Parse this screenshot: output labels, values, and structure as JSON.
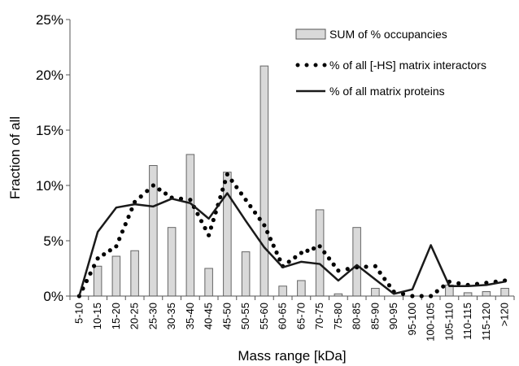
{
  "chart_data": {
    "type": "bar",
    "xlabel": "Mass range [kDa]",
    "ylabel": "Fraction of all",
    "ylim": [
      0,
      25
    ],
    "yticks": [
      "0%",
      "5%",
      "10%",
      "15%",
      "20%",
      "25%"
    ],
    "grid": false,
    "legend_position": "top-right",
    "categories": [
      "5-10",
      "10-15",
      "15-20",
      "20-25",
      "25-30",
      "30-35",
      "35-40",
      "40-45",
      "45-50",
      "50-55",
      "55-60",
      "60-65",
      "65-70",
      "70-75",
      "75-80",
      "80-85",
      "85-90",
      "90-95",
      "95-100",
      "100-105",
      "105-110",
      "110-115",
      "115-120",
      ">120"
    ],
    "series": [
      {
        "name": "SUM of % occupancies",
        "kind": "bar",
        "color": "#d9d9d9",
        "values": [
          0,
          2.7,
          3.6,
          4.1,
          11.8,
          6.2,
          12.8,
          2.5,
          11.2,
          4.0,
          20.8,
          0.9,
          1.4,
          7.8,
          0.2,
          6.2,
          0.7,
          0.0,
          0.0,
          0.0,
          1.0,
          0.3,
          0.4,
          0.7
        ]
      },
      {
        "name": "% of all [-HS] matrix interactors",
        "kind": "dotted-line",
        "color": "#000000",
        "values": [
          0,
          3.4,
          4.5,
          8.5,
          10.0,
          8.9,
          8.7,
          5.5,
          11.0,
          8.7,
          6.4,
          2.7,
          3.9,
          4.5,
          2.3,
          2.6,
          2.7,
          0.4,
          0.0,
          0.0,
          1.3,
          1.0,
          1.2,
          1.4
        ]
      },
      {
        "name": "% of all matrix proteins",
        "kind": "line",
        "color": "#1a1a1a",
        "values": [
          0,
          5.8,
          8.0,
          8.3,
          8.1,
          8.8,
          8.4,
          7.0,
          9.3,
          6.8,
          4.4,
          2.6,
          3.1,
          2.9,
          1.4,
          2.8,
          1.5,
          0.2,
          0.6,
          4.6,
          0.9,
          0.9,
          1.0,
          1.3
        ]
      }
    ]
  }
}
